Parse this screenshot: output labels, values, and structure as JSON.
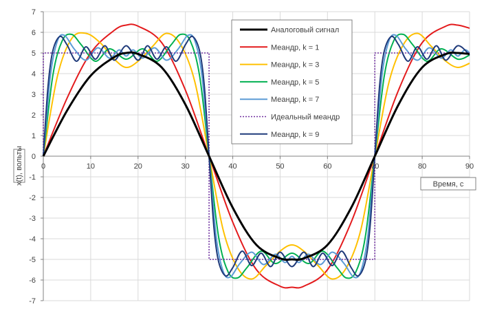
{
  "chart_data": {
    "type": "line",
    "xlabel": "Время, с",
    "ylabel": "x(t), вольты",
    "xlim": [
      0,
      90
    ],
    "ylim": [
      -7,
      7
    ],
    "x_ticks": [
      0,
      10,
      20,
      30,
      40,
      50,
      60,
      70,
      80,
      90
    ],
    "y_ticks": [
      7,
      6,
      5,
      4,
      3,
      2,
      1,
      0,
      -1,
      -2,
      -3,
      -4,
      -5,
      -6,
      -7
    ],
    "grid": true,
    "legend_position": "top-right",
    "series": [
      {
        "name": "Аналоговый сигнал",
        "color": "#000000",
        "style": "solid",
        "x": [
          0,
          5,
          10,
          15,
          17.5,
          20,
          25,
          30,
          35,
          40,
          45,
          50,
          52.5,
          55,
          60,
          65,
          70,
          75,
          80,
          85,
          87.5,
          90
        ],
        "y": [
          0,
          2.2,
          3.9,
          4.8,
          5.0,
          4.95,
          4.3,
          2.5,
          0,
          -2.5,
          -4.3,
          -4.95,
          -5.0,
          -4.95,
          -4.3,
          -2.5,
          0,
          2.5,
          4.3,
          4.95,
          5.0,
          4.95
        ]
      },
      {
        "name": "Меандр, k = 1",
        "color": "#e31a1c",
        "style": "solid",
        "x": [
          0,
          5,
          10,
          15,
          17.5,
          20,
          25,
          30,
          35,
          40,
          45,
          50,
          52.5,
          55,
          60,
          65,
          70,
          75,
          80,
          85,
          87.5,
          90
        ],
        "y": [
          0,
          2.8,
          5.0,
          6.1,
          6.35,
          6.3,
          5.5,
          3.2,
          0,
          -3.2,
          -5.5,
          -6.3,
          -6.35,
          -6.3,
          -5.5,
          -3.2,
          0,
          3.2,
          5.5,
          6.3,
          6.35,
          6.2
        ]
      },
      {
        "name": "Меандр, k = 3",
        "color": "#ffc000",
        "style": "solid",
        "x": [
          0,
          3,
          6,
          9,
          12,
          15,
          17.5,
          20,
          23,
          26,
          29,
          32,
          35,
          38,
          41,
          44,
          47,
          50,
          52.5,
          55,
          58,
          61,
          64,
          67,
          70,
          73,
          76,
          79,
          82,
          85,
          87.5,
          90
        ],
        "y": [
          0,
          3.9,
          5.7,
          5.95,
          5.5,
          4.7,
          4.3,
          4.6,
          5.3,
          5.95,
          5.4,
          3.6,
          0,
          -3.6,
          -5.4,
          -5.95,
          -5.3,
          -4.6,
          -4.3,
          -4.6,
          -5.3,
          -5.95,
          -5.4,
          -3.6,
          0,
          3.6,
          5.4,
          5.95,
          5.3,
          4.6,
          4.3,
          4.5
        ]
      },
      {
        "name": "Меандр, k = 5",
        "color": "#00b050",
        "style": "solid",
        "x": [
          0,
          2,
          4,
          6,
          8,
          11,
          14,
          17.5,
          21,
          24,
          27,
          29,
          31,
          33,
          35,
          37,
          39,
          41,
          43,
          46,
          49,
          52.5,
          56,
          59,
          62,
          64,
          66,
          68,
          70,
          72,
          74,
          76,
          78,
          81,
          84,
          87.5,
          90
        ],
        "y": [
          0,
          3.9,
          5.6,
          5.9,
          5.4,
          4.6,
          5.2,
          4.7,
          5.2,
          4.6,
          5.4,
          5.9,
          5.6,
          3.9,
          0,
          -3.9,
          -5.6,
          -5.9,
          -5.4,
          -4.6,
          -5.2,
          -4.7,
          -5.2,
          -4.6,
          -5.4,
          -5.9,
          -5.6,
          -3.9,
          0,
          3.9,
          5.6,
          5.9,
          5.4,
          4.6,
          5.2,
          4.7,
          4.9
        ]
      },
      {
        "name": "Меандр, k = 7",
        "color": "#5b9bd5",
        "style": "solid",
        "x": [
          0,
          1.5,
          3,
          4.5,
          6.5,
          9,
          11.5,
          14,
          16,
          17.5,
          19,
          21,
          23.5,
          26,
          28.5,
          30.5,
          32,
          33.5,
          35,
          36.5,
          38,
          39.5,
          41.5,
          44,
          46.5,
          49,
          51,
          52.5,
          54,
          56,
          58.5,
          61,
          63.5,
          65.5,
          67,
          68.5,
          70,
          71.5,
          73,
          74.5,
          76.5,
          79,
          81.5,
          84,
          86,
          87.5,
          89,
          90
        ],
        "y": [
          0,
          3.9,
          5.6,
          5.85,
          5.2,
          4.65,
          5.25,
          4.75,
          5.15,
          4.85,
          5.15,
          4.75,
          5.25,
          4.65,
          5.2,
          5.85,
          5.6,
          3.9,
          0,
          -3.9,
          -5.6,
          -5.85,
          -5.2,
          -4.65,
          -5.25,
          -4.75,
          -5.15,
          -4.85,
          -5.15,
          -4.75,
          -5.25,
          -4.65,
          -5.2,
          -5.85,
          -5.6,
          -3.9,
          0,
          3.9,
          5.6,
          5.85,
          5.2,
          4.65,
          5.25,
          4.75,
          5.15,
          4.85,
          5.15,
          5.0
        ]
      },
      {
        "name": "Идеальный меандр",
        "color": "#7030a0",
        "style": "dotted",
        "x": [
          0,
          0,
          35,
          35,
          70,
          70,
          90
        ],
        "y": [
          0,
          5,
          5,
          -5,
          -5,
          5,
          5
        ]
      },
      {
        "name": "Меандр, k = 9",
        "color": "#1f3a7a",
        "style": "solid",
        "x": [
          0,
          1,
          2,
          3.5,
          5,
          7,
          9,
          11,
          13,
          15,
          17.5,
          20,
          22,
          24,
          26,
          28,
          30,
          31.5,
          33,
          34,
          35,
          36,
          37,
          38.5,
          40,
          42,
          44,
          46,
          48,
          50,
          52.5,
          55,
          57,
          59,
          61,
          63,
          65,
          66.5,
          68,
          69,
          70,
          71,
          72,
          73.5,
          75,
          77,
          79,
          81,
          83,
          85,
          87.5,
          90
        ],
        "y": [
          0,
          3.4,
          5.1,
          5.8,
          5.4,
          4.6,
          5.3,
          4.7,
          5.35,
          4.65,
          5.35,
          4.65,
          5.35,
          4.7,
          5.3,
          4.6,
          5.4,
          5.8,
          5.1,
          3.4,
          0,
          -3.4,
          -5.1,
          -5.8,
          -5.4,
          -4.6,
          -5.3,
          -4.7,
          -5.35,
          -4.65,
          -5.35,
          -4.65,
          -5.35,
          -4.7,
          -5.3,
          -4.6,
          -5.4,
          -5.8,
          -5.1,
          -3.4,
          0,
          3.4,
          5.1,
          5.8,
          5.4,
          4.6,
          5.3,
          4.7,
          5.35,
          4.65,
          5.35,
          4.9
        ]
      }
    ],
    "legend_order": [
      0,
      1,
      2,
      3,
      4,
      5,
      6
    ]
  }
}
